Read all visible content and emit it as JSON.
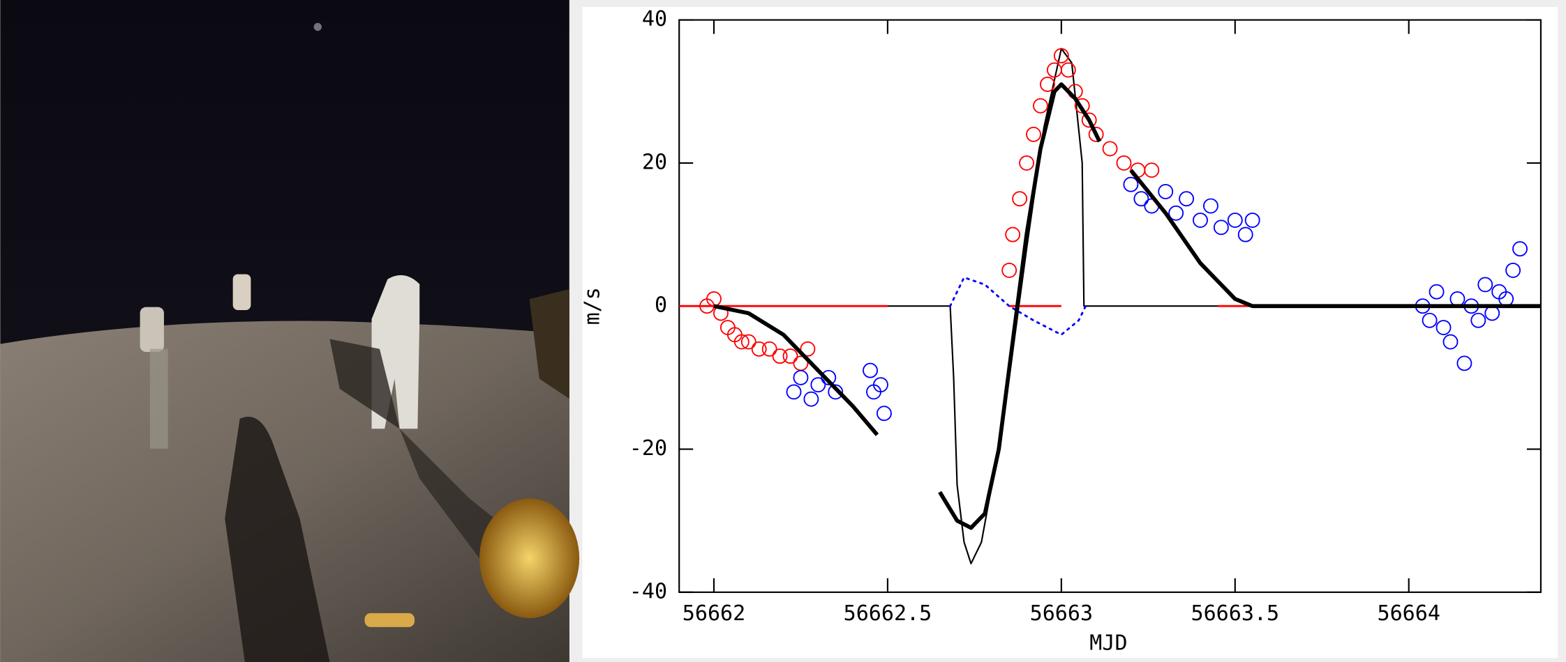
{
  "chart_data": {
    "type": "scatter",
    "xlabel": "MJD",
    "ylabel": "m/s",
    "xlim": [
      56661.9,
      56664.38
    ],
    "ylim": [
      -40,
      40
    ],
    "xticks": [
      56662,
      56662.5,
      56663,
      56663.5,
      56664
    ],
    "yticks": [
      -40,
      -20,
      0,
      20,
      40
    ],
    "series": [
      {
        "color": "#000000",
        "marker": "line",
        "width": 1.5,
        "x": [
          56661.9,
          56662.68,
          56662.69,
          56662.7,
          56662.72,
          56662.74,
          56662.77,
          56662.8,
          56662.85,
          56662.9,
          56662.95,
          56663.0,
          56663.03,
          56663.06,
          56663.065,
          56664.38
        ],
        "values": [
          0,
          0,
          -10,
          -25,
          -33,
          -36,
          -33,
          -25,
          -10,
          8,
          25,
          36,
          34,
          20,
          0,
          0
        ]
      },
      {
        "color": "#ff0000",
        "marker": "line",
        "width": 2,
        "x": [
          56661.9,
          56662.5,
          56662.6,
          56662.85,
          56663.0,
          56663.2,
          56663.45,
          56663.55
        ],
        "values": [
          0,
          0,
          null,
          0,
          0,
          null,
          0,
          0
        ]
      },
      {
        "color": "#ff0000",
        "marker": "circle",
        "x": [
          56661.98,
          56662.0,
          56662.02,
          56662.04,
          56662.06,
          56662.08,
          56662.1,
          56662.13,
          56662.16,
          56662.19,
          56662.22,
          56662.25,
          56662.27,
          56662.85,
          56662.86,
          56662.88,
          56662.9,
          56662.92,
          56662.94,
          56662.96,
          56662.98,
          56663.0,
          56663.02,
          56663.04,
          56663.06,
          56663.08,
          56663.1,
          56663.14,
          56663.18,
          56663.22,
          56663.26
        ],
        "values": [
          0,
          1,
          -1,
          -3,
          -4,
          -5,
          -5,
          -6,
          -6,
          -7,
          -7,
          -8,
          -6,
          5,
          10,
          15,
          20,
          24,
          28,
          31,
          33,
          35,
          33,
          30,
          28,
          26,
          24,
          22,
          20,
          19,
          19
        ]
      },
      {
        "color": "#0000ff",
        "marker": "circle",
        "x": [
          56662.23,
          56662.25,
          56662.28,
          56662.3,
          56662.33,
          56662.35,
          56662.45,
          56662.46,
          56662.48,
          56662.49,
          56663.2,
          56663.23,
          56663.26,
          56663.3,
          56663.33,
          56663.36,
          56663.4,
          56663.43,
          56663.46,
          56663.5,
          56663.53,
          56663.55,
          56664.04,
          56664.06,
          56664.08,
          56664.1,
          56664.12,
          56664.14,
          56664.16,
          56664.18,
          56664.2,
          56664.22,
          56664.24,
          56664.26,
          56664.28,
          56664.3,
          56664.32
        ],
        "values": [
          -12,
          -10,
          -13,
          -11,
          -10,
          -12,
          -9,
          -12,
          -11,
          -15,
          17,
          15,
          14,
          16,
          13,
          15,
          12,
          14,
          11,
          12,
          10,
          12,
          0,
          -2,
          2,
          -3,
          -5,
          1,
          -8,
          0,
          -2,
          3,
          -1,
          2,
          1,
          5,
          8
        ]
      },
      {
        "color": "#0000ff",
        "marker": "line",
        "dash": "dotted",
        "width": 2,
        "x": [
          56662.68,
          56662.72,
          56662.78,
          56662.85,
          56662.92,
          56663.0,
          56663.05,
          56663.07
        ],
        "values": [
          0,
          4,
          3,
          0,
          -2,
          -4,
          -2,
          0
        ]
      },
      {
        "color": "#000000",
        "marker": "line",
        "width": 4,
        "x": [
          56662.0,
          56662.1,
          56662.2,
          56662.3,
          56662.4,
          56662.47,
          null,
          56662.65,
          56662.7,
          56662.74,
          56662.78,
          56662.82,
          56662.86,
          56662.9,
          56662.94,
          56662.98,
          56663.0,
          56663.04,
          56663.08,
          56663.11,
          null,
          56663.2,
          56663.3,
          56663.4,
          56663.5,
          56663.55,
          56664.38
        ],
        "values": [
          0,
          -1,
          -4,
          -9,
          -14,
          -18,
          null,
          -26,
          -30,
          -31,
          -29,
          -20,
          -5,
          10,
          22,
          30,
          31,
          29,
          26,
          23,
          null,
          19,
          13,
          6,
          1,
          0,
          0
        ]
      }
    ]
  }
}
